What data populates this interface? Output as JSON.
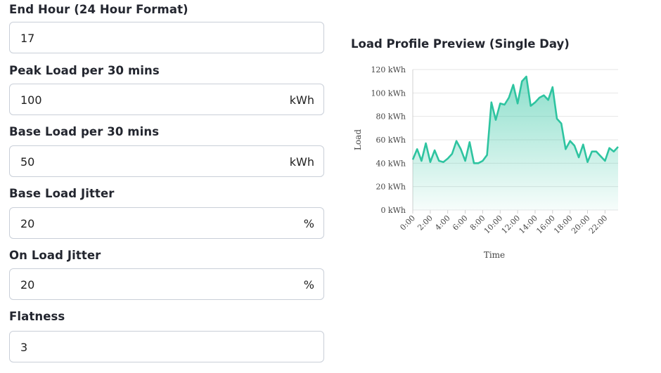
{
  "form": {
    "end_hour": {
      "label": "End Hour (24 Hour Format)",
      "value": "17"
    },
    "peak_load": {
      "label": "Peak Load per 30 mins",
      "value": "100",
      "unit": "kWh"
    },
    "base_load": {
      "label": "Base Load per 30 mins",
      "value": "50",
      "unit": "kWh"
    },
    "base_jitter": {
      "label": "Base Load Jitter",
      "value": "20",
      "unit": "%"
    },
    "on_jitter": {
      "label": "On Load Jitter",
      "value": "20",
      "unit": "%"
    },
    "flatness": {
      "label": "Flatness",
      "value": "3"
    }
  },
  "chart_title": "Load Profile Preview (Single Day)",
  "chart_data": {
    "type": "area",
    "title": "Load Profile Preview (Single Day)",
    "xlabel": "Time",
    "ylabel": "Load",
    "ylim": [
      0,
      120
    ],
    "y_ticks": [
      "0 kWh",
      "20 kWh",
      "40 kWh",
      "60 kWh",
      "80 kWh",
      "100 kWh",
      "120 kWh"
    ],
    "x_ticks": [
      "0:00",
      "2:00",
      "4:00",
      "6:00",
      "8:00",
      "10:00",
      "12:00",
      "14:00",
      "16:00",
      "18:00",
      "20:00",
      "22:00"
    ],
    "x": [
      "0:00",
      "0:30",
      "1:00",
      "1:30",
      "2:00",
      "2:30",
      "3:00",
      "3:30",
      "4:00",
      "4:30",
      "5:00",
      "5:30",
      "6:00",
      "6:30",
      "7:00",
      "7:30",
      "8:00",
      "8:30",
      "9:00",
      "9:30",
      "10:00",
      "10:30",
      "11:00",
      "11:30",
      "12:00",
      "12:30",
      "13:00",
      "13:30",
      "14:00",
      "14:30",
      "15:00",
      "15:30",
      "16:00",
      "16:30",
      "17:00",
      "17:30",
      "18:00",
      "18:30",
      "19:00",
      "19:30",
      "20:00",
      "20:30",
      "21:00",
      "21:30",
      "22:00",
      "22:30",
      "23:00",
      "23:30"
    ],
    "values": [
      43,
      52,
      42,
      57,
      41,
      51,
      42,
      41,
      44,
      48,
      59,
      52,
      42,
      58,
      40,
      40,
      42,
      47,
      92,
      77,
      91,
      90,
      96,
      107,
      91,
      110,
      114,
      89,
      92,
      96,
      98,
      94,
      105,
      78,
      74,
      52,
      59,
      55,
      45,
      56,
      41,
      50,
      50,
      46,
      42,
      53,
      50,
      54
    ],
    "grid": true,
    "color": "#2ec4a0"
  }
}
